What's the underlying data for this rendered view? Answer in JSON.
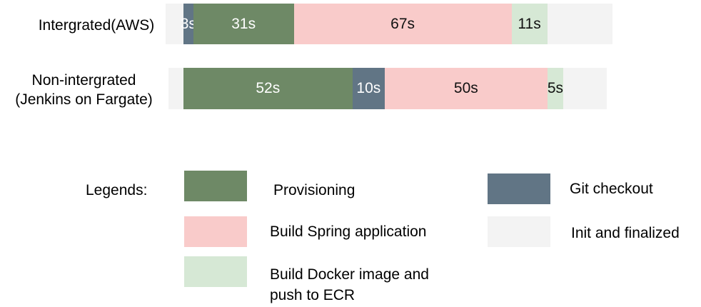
{
  "chart_data": {
    "type": "bar",
    "orientation": "horizontal-stacked",
    "categories": [
      "Intergrated(AWS)",
      "Non-intergrated\n(Jenkins on Fargate)"
    ],
    "rows": [
      {
        "label_lines": [
          "Intergrated(AWS)"
        ],
        "segments": [
          {
            "series": "git",
            "value": 3,
            "label": "3s"
          },
          {
            "series": "prov",
            "value": 31,
            "label": "31s"
          },
          {
            "series": "spring",
            "value": 67,
            "label": "67s"
          },
          {
            "series": "docker",
            "value": 11,
            "label": "11s"
          }
        ]
      },
      {
        "label_lines": [
          "Non-intergrated",
          "(Jenkins on Fargate)"
        ],
        "segments": [
          {
            "series": "prov",
            "value": 52,
            "label": "52s"
          },
          {
            "series": "git",
            "value": 10,
            "label": "10s"
          },
          {
            "series": "spring",
            "value": 50,
            "label": "50s"
          },
          {
            "series": "docker",
            "value": 5,
            "label": "5s"
          }
        ]
      }
    ],
    "series": [
      {
        "id": "prov",
        "name": "Provisioning",
        "color": "#6e8966"
      },
      {
        "id": "git",
        "name": "Git checkout",
        "color": "#617585"
      },
      {
        "id": "spring",
        "name": "Build Spring application",
        "color": "#f9cbca"
      },
      {
        "id": "init",
        "name": "Init and finalized",
        "color": "#f3f3f3"
      },
      {
        "id": "docker",
        "name": "Build Docker image and push to ECR",
        "color": "#d6e8d5"
      }
    ]
  },
  "legend": {
    "title": "Legends:",
    "items": [
      {
        "id": "prov",
        "lines": [
          "Provisioning"
        ]
      },
      {
        "id": "git",
        "lines": [
          "Git checkout"
        ]
      },
      {
        "id": "spring",
        "lines": [
          "Build Spring application"
        ]
      },
      {
        "id": "init",
        "lines": [
          "Init and finalized"
        ]
      },
      {
        "id": "docker",
        "lines": [
          "Build Docker image and",
          "push to ECR"
        ]
      }
    ]
  }
}
